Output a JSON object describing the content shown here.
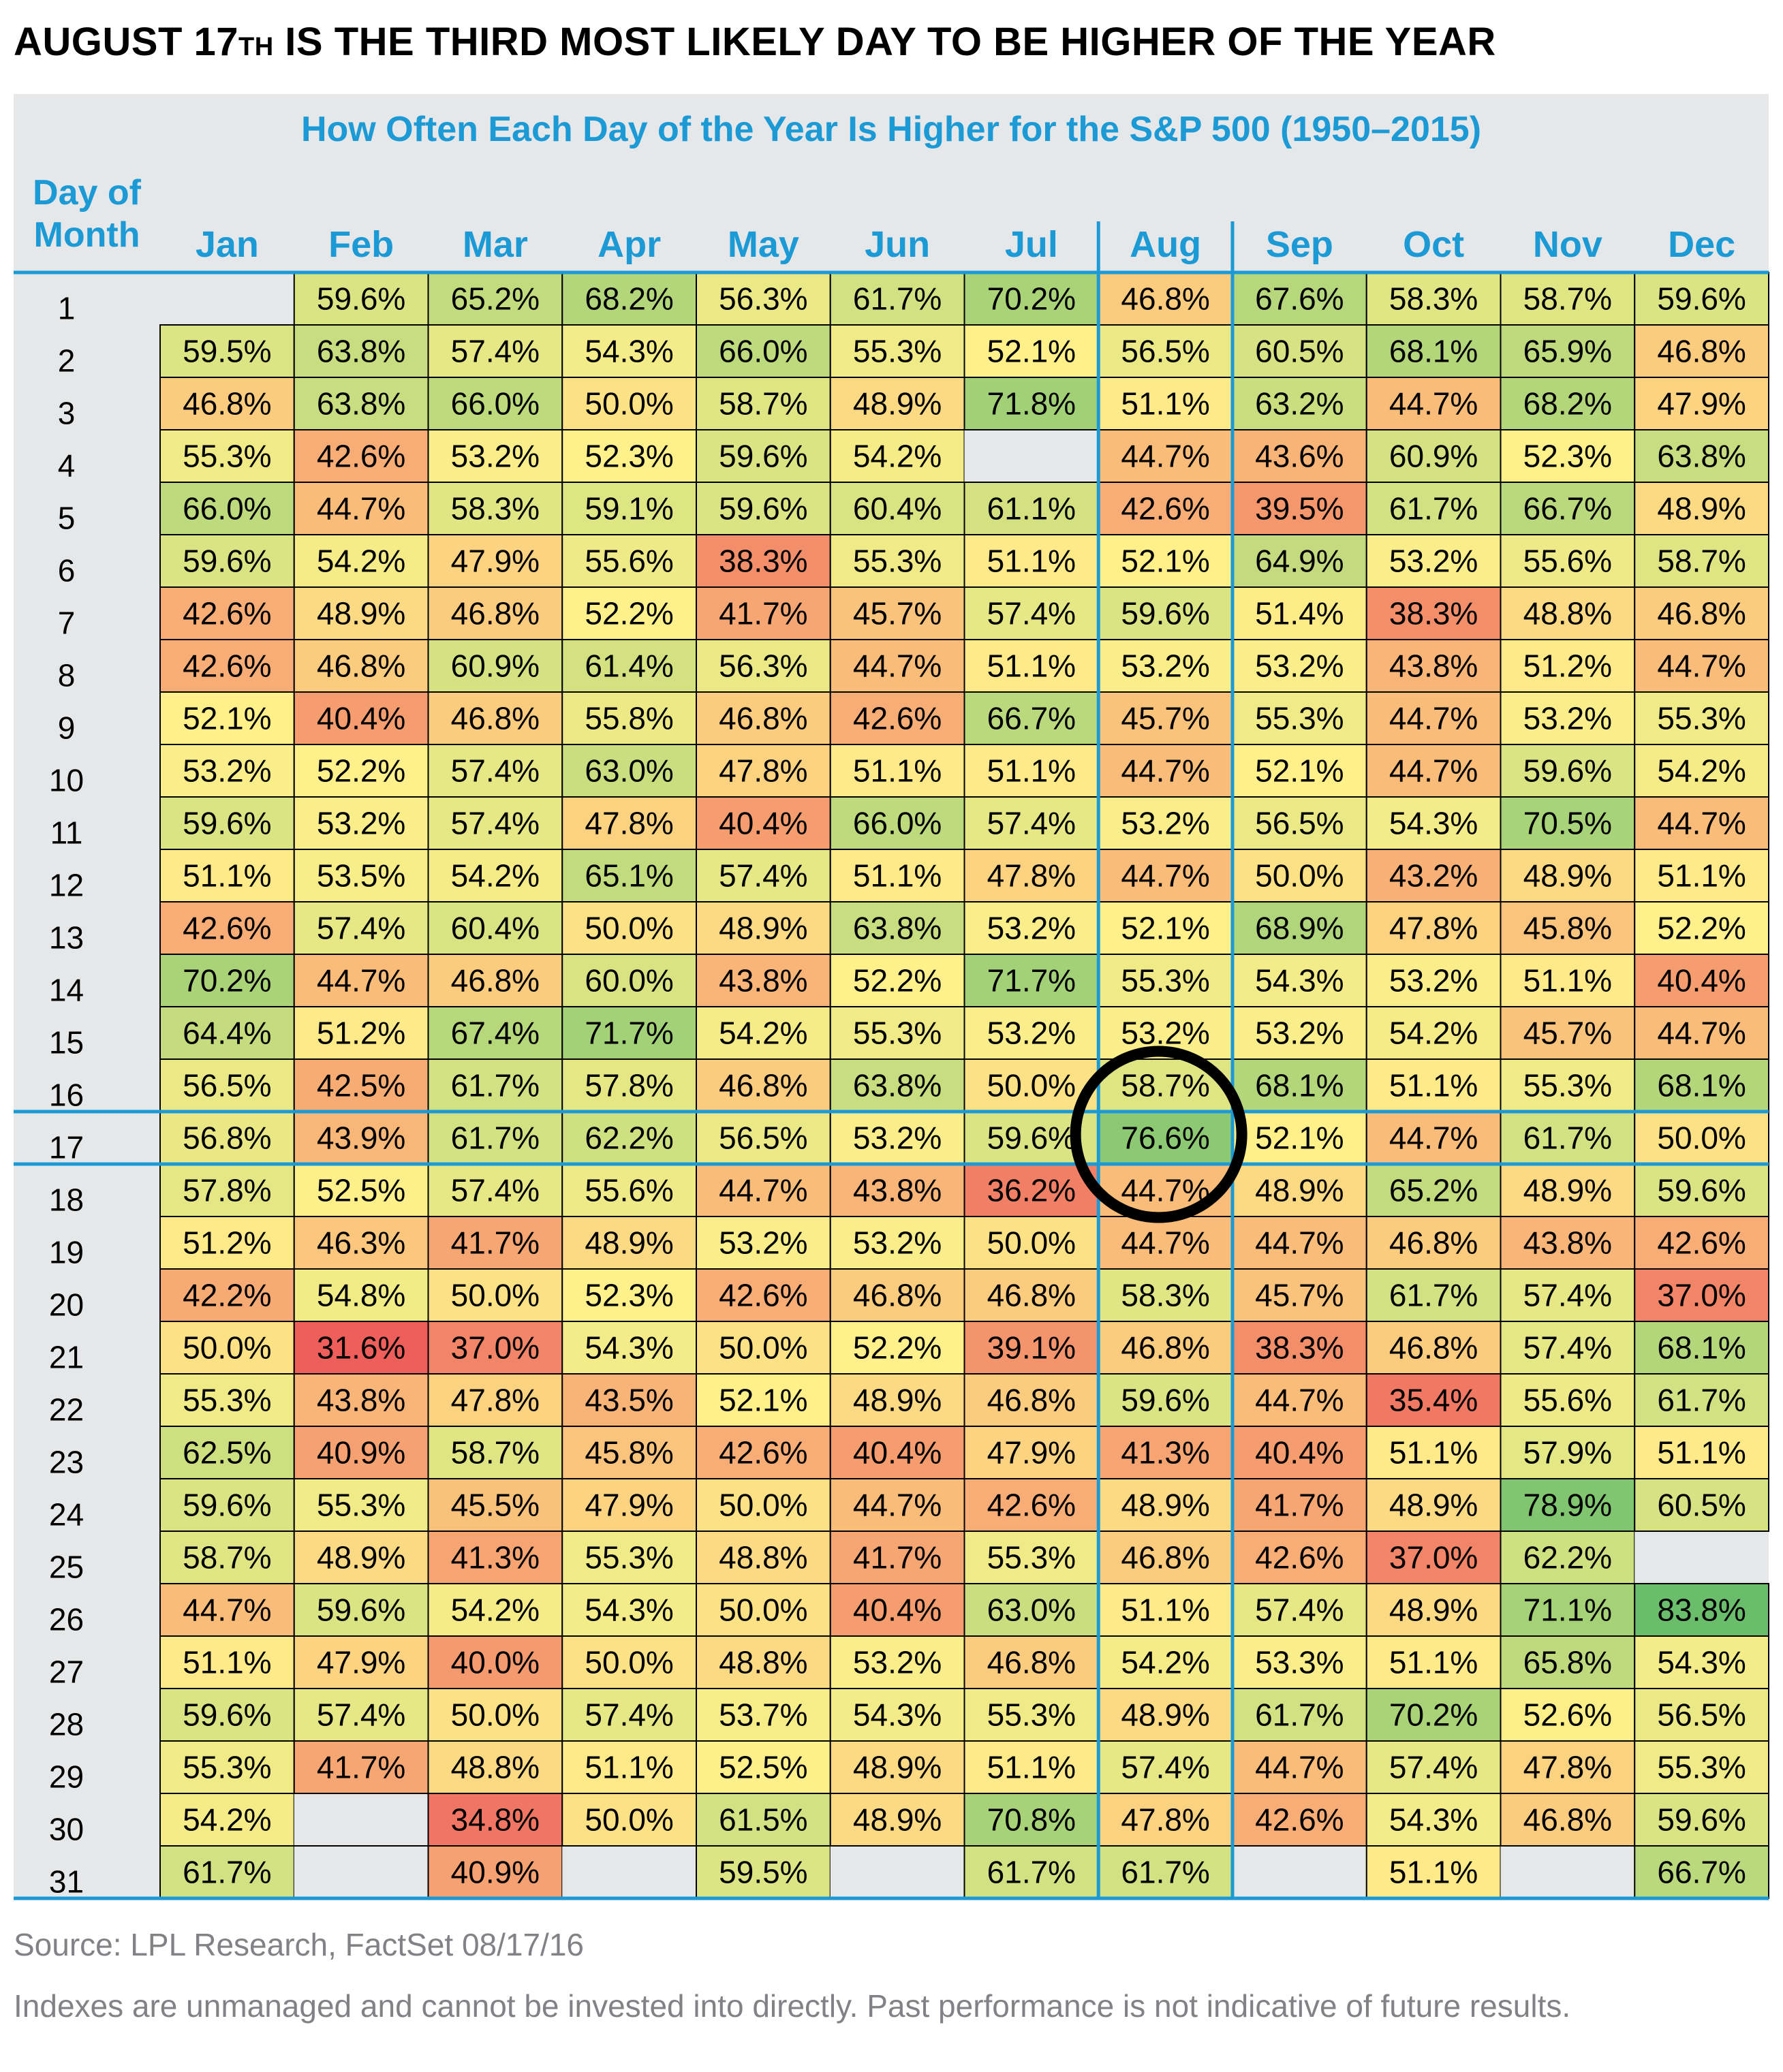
{
  "headline": {
    "pre": "AUGUST 17",
    "sup": "TH",
    "post": " IS THE THIRD MOST LIKELY DAY TO BE HIGHER OF THE YEAR"
  },
  "colors": {
    "title_blue": "#1b9ad6",
    "panel_gray": "#e6e7e8",
    "empty_cell": "#e6e7e8",
    "scale_low": "#ed5a5a",
    "scale_mid": "#fff08a",
    "scale_high": "#69bd6b",
    "highlight_circle": "#000000"
  },
  "chart_data": {
    "type": "heatmap",
    "title": "How Often Each Day of the Year Is Higher for the S&P 500 (1950–2015)",
    "row_header_label": "Day of Month",
    "columns": [
      "Jan",
      "Feb",
      "Mar",
      "Apr",
      "May",
      "Jun",
      "Jul",
      "Aug",
      "Sep",
      "Oct",
      "Nov",
      "Dec"
    ],
    "rows": [
      "1",
      "2",
      "3",
      "4",
      "5",
      "6",
      "7",
      "8",
      "9",
      "10",
      "11",
      "12",
      "13",
      "14",
      "15",
      "16",
      "17",
      "18",
      "19",
      "20",
      "21",
      "22",
      "23",
      "24",
      "25",
      "26",
      "27",
      "28",
      "29",
      "30",
      "31"
    ],
    "values": [
      [
        null,
        59.6,
        65.2,
        68.2,
        56.3,
        61.7,
        70.2,
        46.8,
        67.6,
        58.3,
        58.7,
        59.6
      ],
      [
        59.5,
        63.8,
        57.4,
        54.3,
        66.0,
        55.3,
        52.1,
        56.5,
        60.5,
        68.1,
        65.9,
        46.8
      ],
      [
        46.8,
        63.8,
        66.0,
        50.0,
        58.7,
        48.9,
        71.8,
        51.1,
        63.2,
        44.7,
        68.2,
        47.9
      ],
      [
        55.3,
        42.6,
        53.2,
        52.3,
        59.6,
        54.2,
        null,
        44.7,
        43.6,
        60.9,
        52.3,
        63.8
      ],
      [
        66.0,
        44.7,
        58.3,
        59.1,
        59.6,
        60.4,
        61.1,
        42.6,
        39.5,
        61.7,
        66.7,
        48.9
      ],
      [
        59.6,
        54.2,
        47.9,
        55.6,
        38.3,
        55.3,
        51.1,
        52.1,
        64.9,
        53.2,
        55.6,
        58.7
      ],
      [
        42.6,
        48.9,
        46.8,
        52.2,
        41.7,
        45.7,
        57.4,
        59.6,
        51.4,
        38.3,
        48.8,
        46.8
      ],
      [
        42.6,
        46.8,
        60.9,
        61.4,
        56.3,
        44.7,
        51.1,
        53.2,
        53.2,
        43.8,
        51.2,
        44.7
      ],
      [
        52.1,
        40.4,
        46.8,
        55.8,
        46.8,
        42.6,
        66.7,
        45.7,
        55.3,
        44.7,
        53.2,
        55.3
      ],
      [
        53.2,
        52.2,
        57.4,
        63.0,
        47.8,
        51.1,
        51.1,
        44.7,
        52.1,
        44.7,
        59.6,
        54.2
      ],
      [
        59.6,
        53.2,
        57.4,
        47.8,
        40.4,
        66.0,
        57.4,
        53.2,
        56.5,
        54.3,
        70.5,
        44.7
      ],
      [
        51.1,
        53.5,
        54.2,
        65.1,
        57.4,
        51.1,
        47.8,
        44.7,
        50.0,
        43.2,
        48.9,
        51.1
      ],
      [
        42.6,
        57.4,
        60.4,
        50.0,
        48.9,
        63.8,
        53.2,
        52.1,
        68.9,
        47.8,
        45.8,
        52.2
      ],
      [
        70.2,
        44.7,
        46.8,
        60.0,
        43.8,
        52.2,
        71.7,
        55.3,
        54.3,
        53.2,
        51.1,
        40.4
      ],
      [
        64.4,
        51.2,
        67.4,
        71.7,
        54.2,
        55.3,
        53.2,
        53.2,
        53.2,
        54.2,
        45.7,
        44.7
      ],
      [
        56.5,
        42.5,
        61.7,
        57.8,
        46.8,
        63.8,
        50.0,
        58.7,
        68.1,
        51.1,
        55.3,
        68.1
      ],
      [
        56.8,
        43.9,
        61.7,
        62.2,
        56.5,
        53.2,
        59.6,
        76.6,
        52.1,
        44.7,
        61.7,
        50.0
      ],
      [
        57.8,
        52.5,
        57.4,
        55.6,
        44.7,
        43.8,
        36.2,
        44.7,
        48.9,
        65.2,
        48.9,
        59.6
      ],
      [
        51.2,
        46.3,
        41.7,
        48.9,
        53.2,
        53.2,
        50.0,
        44.7,
        44.7,
        46.8,
        43.8,
        42.6
      ],
      [
        42.2,
        54.8,
        50.0,
        52.3,
        42.6,
        46.8,
        46.8,
        58.3,
        45.7,
        61.7,
        57.4,
        37.0
      ],
      [
        50.0,
        31.6,
        37.0,
        54.3,
        50.0,
        52.2,
        39.1,
        46.8,
        38.3,
        46.8,
        57.4,
        68.1
      ],
      [
        55.3,
        43.8,
        47.8,
        43.5,
        52.1,
        48.9,
        46.8,
        59.6,
        44.7,
        35.4,
        55.6,
        61.7
      ],
      [
        62.5,
        40.9,
        58.7,
        45.8,
        42.6,
        40.4,
        47.9,
        41.3,
        40.4,
        51.1,
        57.9,
        51.1
      ],
      [
        59.6,
        55.3,
        45.5,
        47.9,
        50.0,
        44.7,
        42.6,
        48.9,
        41.7,
        48.9,
        78.9,
        60.5
      ],
      [
        58.7,
        48.9,
        41.3,
        55.3,
        48.8,
        41.7,
        55.3,
        46.8,
        42.6,
        37.0,
        62.2,
        null
      ],
      [
        44.7,
        59.6,
        54.2,
        54.3,
        50.0,
        40.4,
        63.0,
        51.1,
        57.4,
        48.9,
        71.1,
        83.8
      ],
      [
        51.1,
        47.9,
        40.0,
        50.0,
        48.8,
        53.2,
        46.8,
        54.2,
        53.3,
        51.1,
        65.8,
        54.3
      ],
      [
        59.6,
        57.4,
        50.0,
        57.4,
        53.7,
        54.3,
        55.3,
        48.9,
        61.7,
        70.2,
        52.6,
        56.5
      ],
      [
        55.3,
        41.7,
        48.8,
        51.1,
        52.5,
        48.9,
        51.1,
        57.4,
        44.7,
        57.4,
        47.8,
        55.3
      ],
      [
        54.2,
        null,
        34.8,
        50.0,
        61.5,
        48.9,
        70.8,
        47.8,
        42.6,
        54.3,
        46.8,
        59.6
      ],
      [
        61.7,
        null,
        40.9,
        null,
        59.5,
        null,
        61.7,
        61.7,
        null,
        51.1,
        null,
        66.7
      ]
    ],
    "value_suffix": "%",
    "highlighted_column": "Aug",
    "highlighted_row": "17",
    "circled_cell": {
      "row": "17",
      "column": "Aug"
    }
  },
  "footer": {
    "source": "Source: LPL Research, FactSet   08/17/16",
    "disclaimer": "Indexes are unmanaged and cannot be invested into directly. Past performance is not indicative of future results."
  }
}
